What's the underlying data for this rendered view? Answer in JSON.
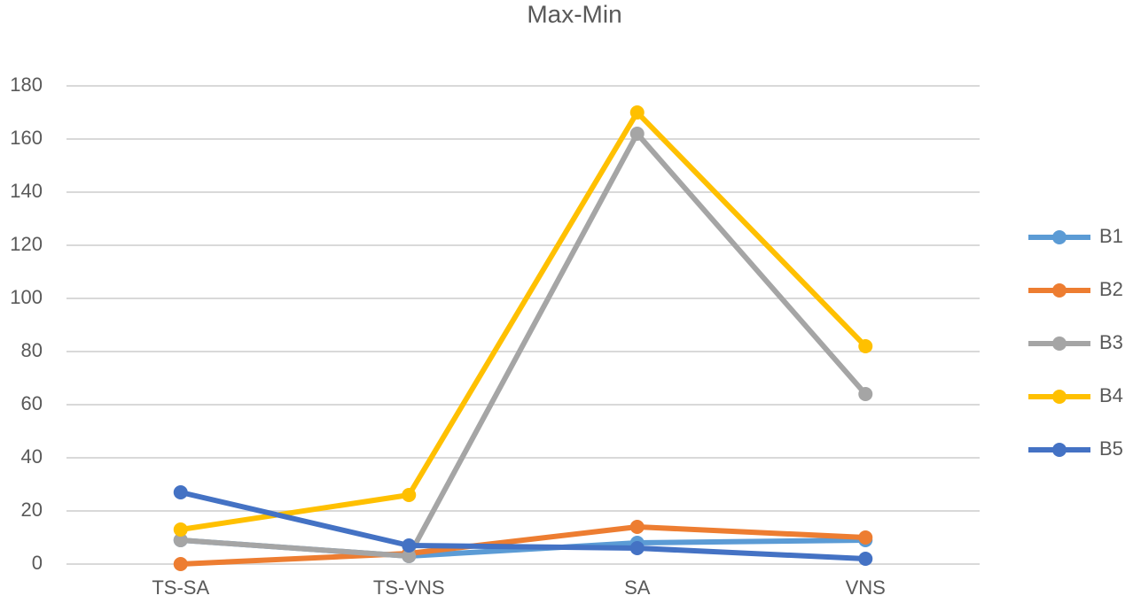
{
  "chart_data": {
    "type": "line",
    "title": "Max-Min",
    "categories": [
      "TS-SA",
      "TS-VNS",
      "SA",
      "VNS"
    ],
    "series": [
      {
        "name": "B1",
        "color": "#5b9bd5",
        "values": [
          9,
          3,
          8,
          9
        ]
      },
      {
        "name": "B2",
        "color": "#ed7d31",
        "values": [
          0,
          4,
          14,
          10
        ]
      },
      {
        "name": "B3",
        "color": "#a5a5a5",
        "values": [
          9,
          3,
          162,
          64
        ]
      },
      {
        "name": "B4",
        "color": "#ffc000",
        "values": [
          13,
          26,
          170,
          82
        ]
      },
      {
        "name": "B5",
        "color": "#4472c4",
        "values": [
          27,
          7,
          6,
          2
        ]
      }
    ],
    "ylim": [
      0,
      180
    ],
    "yticks": [
      0,
      20,
      40,
      60,
      80,
      100,
      120,
      140,
      160,
      180
    ],
    "grid": true,
    "legend": "right"
  }
}
